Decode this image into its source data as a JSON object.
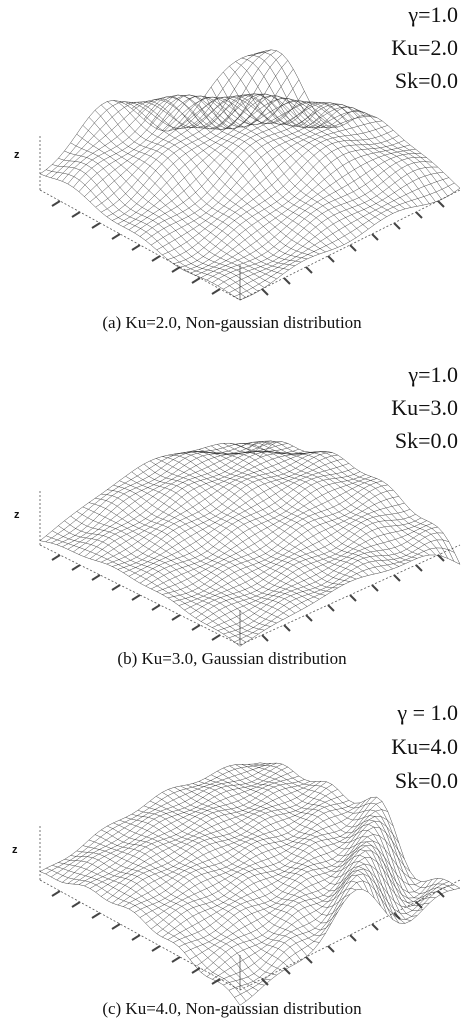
{
  "panels": [
    {
      "params": [
        "γ=1.0",
        "Ku=2.0",
        "Sk=0.0"
      ],
      "axis_label": "z",
      "caption": "(a) Ku=2.0, Non-gaussian distribution"
    },
    {
      "params": [
        "γ=1.0",
        "Ku=3.0",
        "Sk=0.0"
      ],
      "axis_label": "z",
      "caption": "(b) Ku=3.0, Gaussian distribution"
    },
    {
      "params": [
        "γ = 1.0",
        "Ku=4.0",
        "Sk=0.0"
      ],
      "axis_label": "z",
      "caption": "(c) Ku=4.0, Non-gaussian distribution"
    }
  ]
}
